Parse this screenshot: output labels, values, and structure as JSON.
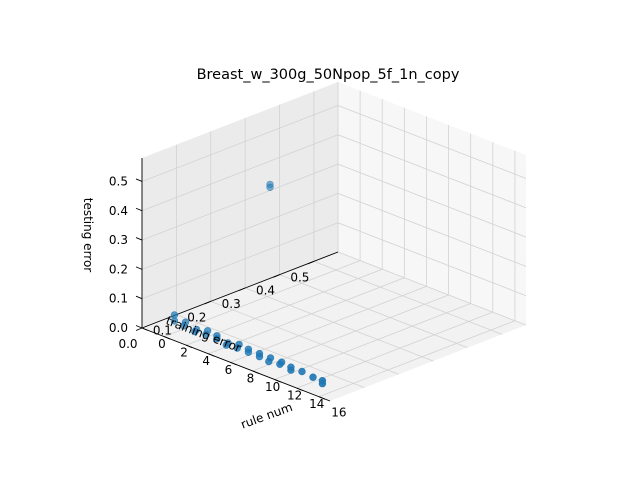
{
  "chart_data": {
    "type": "scatter",
    "projection": "3d",
    "title": "Breast_w_300g_50Npop_5f_1n_copy",
    "xlabel": "rule num",
    "ylabel": "training error",
    "zlabel": "testing error",
    "x_ticks": [
      "0",
      "2",
      "4",
      "6",
      "8",
      "10",
      "12",
      "14",
      "16"
    ],
    "y_ticks": [
      "0.0",
      "0.1",
      "0.2",
      "0.3",
      "0.4",
      "0.5"
    ],
    "z_ticks": [
      "0.0",
      "0.1",
      "0.2",
      "0.3",
      "0.4",
      "0.5"
    ],
    "xlim": [
      0,
      17
    ],
    "ylim": [
      0,
      0.57
    ],
    "zlim": [
      0,
      0.58
    ],
    "grid": true,
    "marker_color": "#1f77b4",
    "points": [
      {
        "x": 1,
        "y": 0.34,
        "z": 0.34
      },
      {
        "x": 1,
        "y": 0.34,
        "z": 0.35
      },
      {
        "x": 2,
        "y": 0.03,
        "z": 0.06
      },
      {
        "x": 2,
        "y": 0.03,
        "z": 0.04
      },
      {
        "x": 3,
        "y": 0.03,
        "z": 0.05
      },
      {
        "x": 3,
        "y": 0.025,
        "z": 0.04
      },
      {
        "x": 4,
        "y": 0.03,
        "z": 0.04
      },
      {
        "x": 4,
        "y": 0.025,
        "z": 0.035
      },
      {
        "x": 5,
        "y": 0.03,
        "z": 0.05
      },
      {
        "x": 5,
        "y": 0.025,
        "z": 0.04
      },
      {
        "x": 6,
        "y": 0.025,
        "z": 0.04
      },
      {
        "x": 6,
        "y": 0.025,
        "z": 0.05
      },
      {
        "x": 7,
        "y": 0.025,
        "z": 0.04
      },
      {
        "x": 7,
        "y": 0.02,
        "z": 0.035
      },
      {
        "x": 8,
        "y": 0.025,
        "z": 0.05
      },
      {
        "x": 8,
        "y": 0.02,
        "z": 0.04
      },
      {
        "x": 9,
        "y": 0.02,
        "z": 0.05
      },
      {
        "x": 9,
        "y": 0.02,
        "z": 0.04
      },
      {
        "x": 10,
        "y": 0.02,
        "z": 0.05
      },
      {
        "x": 10,
        "y": 0.02,
        "z": 0.04
      },
      {
        "x": 11,
        "y": 0.02,
        "z": 0.05
      },
      {
        "x": 11,
        "y": 0.015,
        "z": 0.04
      },
      {
        "x": 12,
        "y": 0.02,
        "z": 0.05
      },
      {
        "x": 12,
        "y": 0.015,
        "z": 0.045
      },
      {
        "x": 13,
        "y": 0.015,
        "z": 0.05
      },
      {
        "x": 13,
        "y": 0.015,
        "z": 0.04
      },
      {
        "x": 14,
        "y": 0.015,
        "z": 0.05
      },
      {
        "x": 15,
        "y": 0.015,
        "z": 0.045
      },
      {
        "x": 16,
        "y": 0.01,
        "z": 0.05
      },
      {
        "x": 16,
        "y": 0.01,
        "z": 0.04
      }
    ]
  }
}
